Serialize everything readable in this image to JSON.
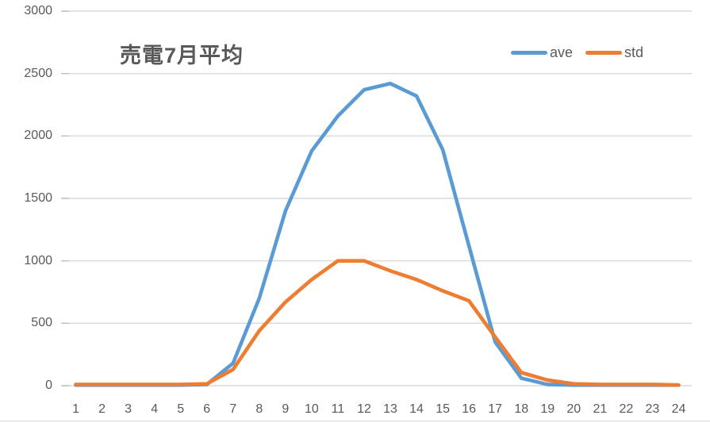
{
  "title": "売電7月平均",
  "colors": {
    "series_ave": "#5B9BD5",
    "series_std": "#ED7D31",
    "gridline": "#D9D9D9",
    "tick": "#BFBFBF",
    "text": "#595959"
  },
  "chart_data": {
    "type": "line",
    "title": "売電7月平均",
    "categories": [
      1,
      2,
      3,
      4,
      5,
      6,
      7,
      8,
      9,
      10,
      11,
      12,
      13,
      14,
      15,
      16,
      17,
      18,
      19,
      20,
      21,
      22,
      23,
      24
    ],
    "series": [
      {
        "name": "ave",
        "color": "#5B9BD5",
        "values": [
          5,
          5,
          5,
          5,
          5,
          10,
          180,
          700,
          1400,
          1880,
          2160,
          2370,
          2420,
          2320,
          1890,
          1120,
          350,
          60,
          10,
          5,
          5,
          5,
          5,
          5
        ]
      },
      {
        "name": "std",
        "color": "#ED7D31",
        "values": [
          10,
          10,
          10,
          10,
          10,
          15,
          130,
          440,
          670,
          850,
          1000,
          1000,
          920,
          850,
          760,
          680,
          390,
          105,
          45,
          15,
          10,
          10,
          10,
          5
        ]
      }
    ],
    "xlabel": "",
    "ylabel": "",
    "ylim": [
      0,
      3000
    ],
    "y_ticks": [
      0,
      500,
      1000,
      1500,
      2000,
      2500,
      3000
    ],
    "grid": true,
    "legend_position": "top-right"
  }
}
